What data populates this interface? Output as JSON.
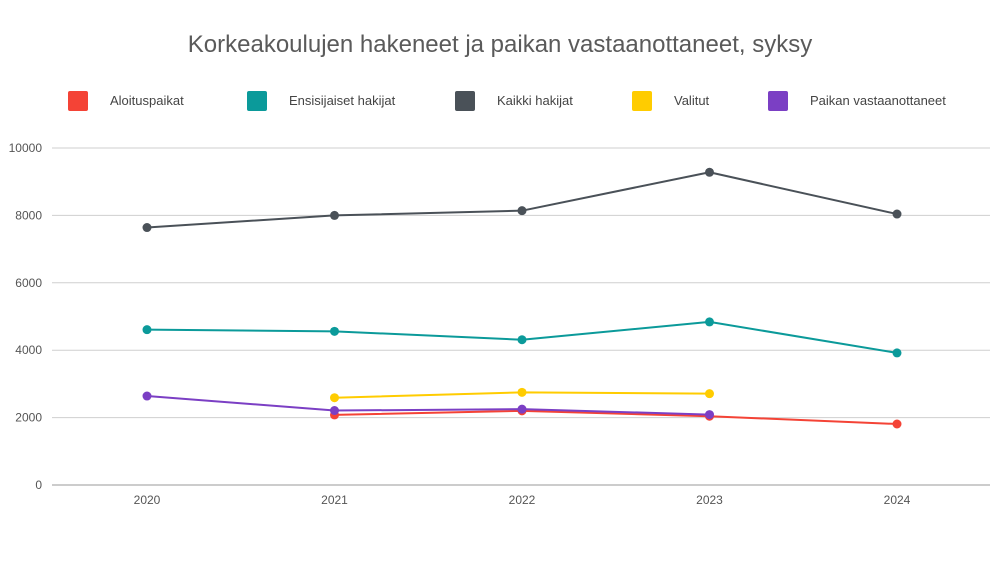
{
  "chart_data": {
    "type": "line",
    "title": "Korkeakoulujen hakeneet ja paikan vastaanottaneet, syksy",
    "xlabel": "",
    "ylabel": "",
    "categories": [
      "2020",
      "2021",
      "2022",
      "2023",
      "2024"
    ],
    "ylim": [
      0,
      10000
    ],
    "yticks": [
      0,
      2000,
      4000,
      6000,
      8000,
      10000
    ],
    "ytick_labels": [
      "0",
      "2000",
      "4000",
      "6000",
      "8000",
      "10000"
    ],
    "grid": true,
    "legend_position": "top",
    "series": [
      {
        "name": "Aloituspaikat",
        "color": "#f44336",
        "values": [
          null,
          2080,
          2200,
          2040,
          1810
        ]
      },
      {
        "name": "Ensisijaiset hakijat",
        "color": "#0b9a9a",
        "values": [
          4610,
          4560,
          4310,
          4840,
          3920
        ]
      },
      {
        "name": "Kaikki hakijat",
        "color": "#4a5158",
        "values": [
          7640,
          8000,
          8140,
          9280,
          8040
        ]
      },
      {
        "name": "Valitut",
        "color": "#ffcc00",
        "values": [
          null,
          2590,
          2750,
          2710,
          null
        ]
      },
      {
        "name": "Paikan vastaanottaneet",
        "color": "#7b3fc4",
        "values": [
          2640,
          2210,
          2250,
          2090,
          null
        ]
      }
    ]
  }
}
